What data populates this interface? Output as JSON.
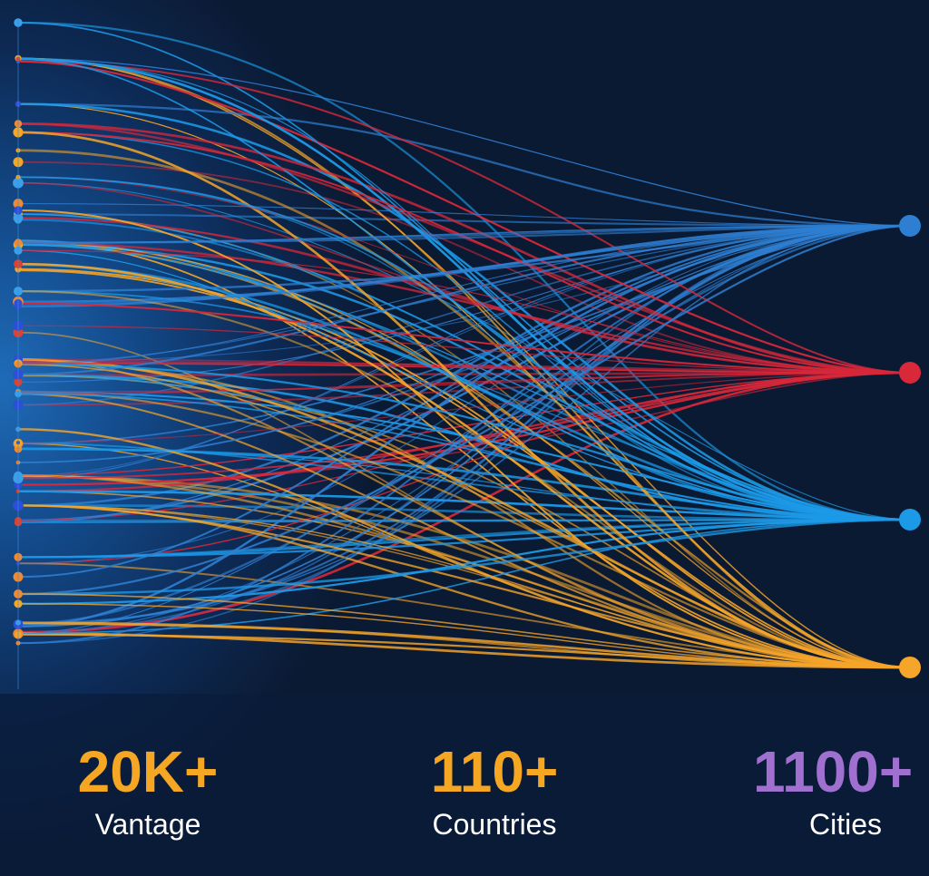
{
  "stats": [
    {
      "value": "20K+",
      "label": "Vantage"
    },
    {
      "value": "110+",
      "label": "Countries"
    },
    {
      "value": "1100+",
      "label": "Cities"
    }
  ]
}
